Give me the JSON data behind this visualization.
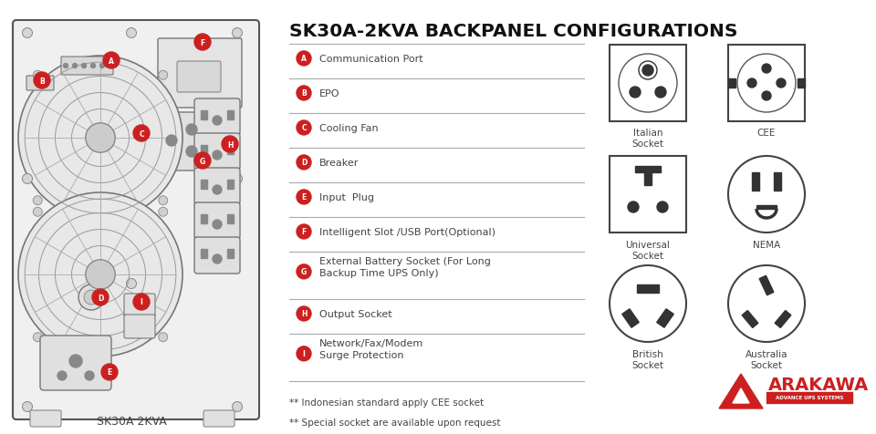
{
  "title": "SK30A-2KVA BACKPANEL CONFIGURATIONS",
  "bg_color": "#ffffff",
  "label_color": "#333333",
  "red_color": "#cc2020",
  "line_color": "#aaaaaa",
  "dark_color": "#444444",
  "items": [
    {
      "letter": "A",
      "text": "Communication Port"
    },
    {
      "letter": "B",
      "text": "EPO"
    },
    {
      "letter": "C",
      "text": "Cooling Fan"
    },
    {
      "letter": "D",
      "text": "Breaker"
    },
    {
      "letter": "E",
      "text": "Input  Plug"
    },
    {
      "letter": "F",
      "text": "Intelligent Slot /USB Port(Optional)"
    },
    {
      "letter": "G",
      "text": "External Battery Socket (For Long\nBackup Time UPS Only)"
    },
    {
      "letter": "H",
      "text": "Output Socket"
    },
    {
      "letter": "I",
      "text": "Network/Fax/Modem\nSurge Protection"
    }
  ],
  "notes": [
    "** Indonesian standard apply CEE socket",
    "** Special socket are available upon request"
  ],
  "ups_label": "SK30A 2KVA",
  "arakawa_red": "#cc2020",
  "arakawa_text": "ARAKAWA",
  "arakawa_sub": "ADVANCE UPS SYSTEMS"
}
